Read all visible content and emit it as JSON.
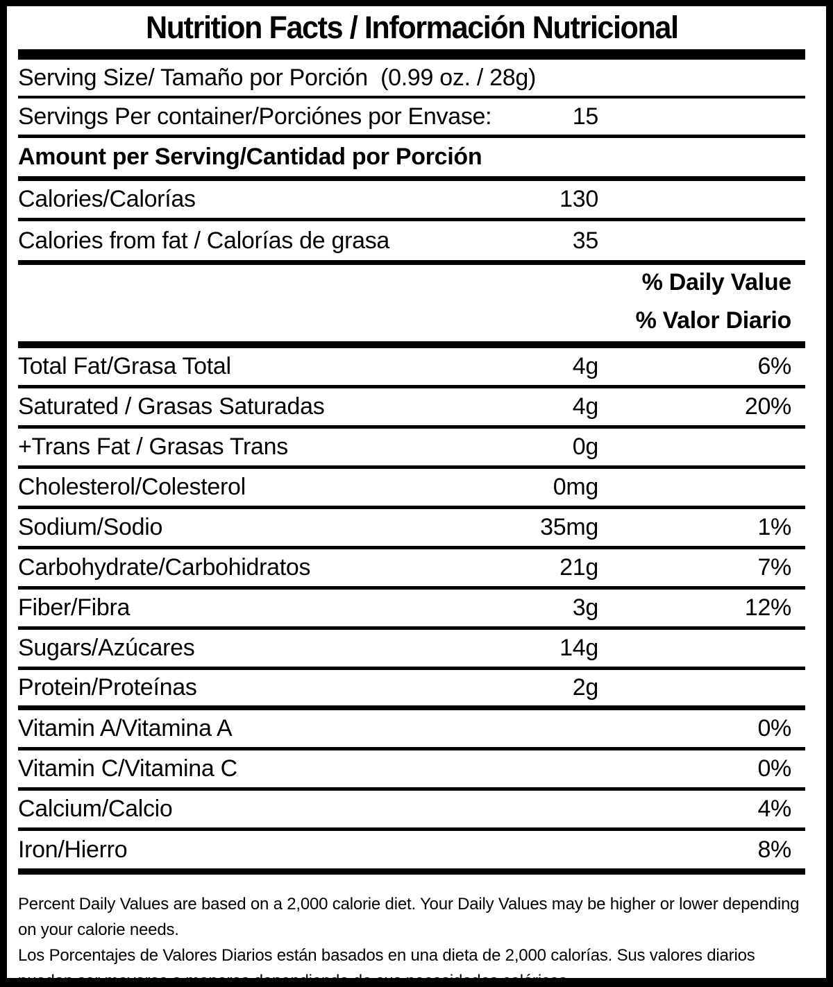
{
  "label": {
    "title": "Nutrition Facts / Información Nutricional",
    "serving_size_row": {
      "label": "Serving Size/ Tamaño por Porción  (0.99 oz. / 28g)"
    },
    "servings_per_container_row": {
      "label": "Servings Per container/Porciónes por Envase:",
      "value": "15"
    },
    "amount_per_serving_header": "Amount per Serving/Cantidad por Porción",
    "calories_row": {
      "label": "Calories/Calorías",
      "value": "130"
    },
    "calories_from_fat_row": {
      "label": "Calories from fat / Calorías de grasa",
      "value": "35"
    },
    "daily_value_header_en": "% Daily Value",
    "daily_value_header_es": "% Valor Diario",
    "nutrients": [
      {
        "name": "Total Fat/Grasa Total",
        "amount": "4g",
        "dv": "6%"
      },
      {
        "name": "Saturated / Grasas Saturadas",
        "amount": "4g",
        "dv": "20%"
      },
      {
        "name": "+Trans Fat / Grasas Trans",
        "amount": "0g",
        "dv": ""
      },
      {
        "name": "Cholesterol/Colesterol",
        "amount": "0mg",
        "dv": ""
      },
      {
        "name": "Sodium/Sodio",
        "amount": "35mg",
        "dv": "1%"
      },
      {
        "name": "Carbohydrate/Carbohidratos",
        "amount": "21g",
        "dv": "7%"
      },
      {
        "name": "Fiber/Fibra",
        "amount": "3g",
        "dv": "12%"
      },
      {
        "name": "Sugars/Azúcares",
        "amount": "14g",
        "dv": ""
      },
      {
        "name": "Protein/Proteínas",
        "amount": "2g",
        "dv": ""
      },
      {
        "name": "Vitamin A/Vitamina A",
        "amount": "",
        "dv": "0%"
      },
      {
        "name": "Vitamin C/Vitamina C",
        "amount": "",
        "dv": "0%"
      },
      {
        "name": "Calcium/Calcio",
        "amount": "",
        "dv": "4%"
      },
      {
        "name": "Iron/Hierro",
        "amount": "",
        "dv": "8%"
      }
    ],
    "footnotes": {
      "en": "Percent Daily Values are based on a 2,000 calorie diet. Your Daily Values may be higher or lower depending on your calorie needs.",
      "es": "Los Porcentajes de Valores Diarios están basados en una dieta de 2,000 calorías. Sus valores diarios pueden ser mayores o menores dependiendo de sus necesidades calóricas"
    },
    "colors": {
      "text": "#000000",
      "background": "#ffffff",
      "border": "#000000"
    }
  }
}
